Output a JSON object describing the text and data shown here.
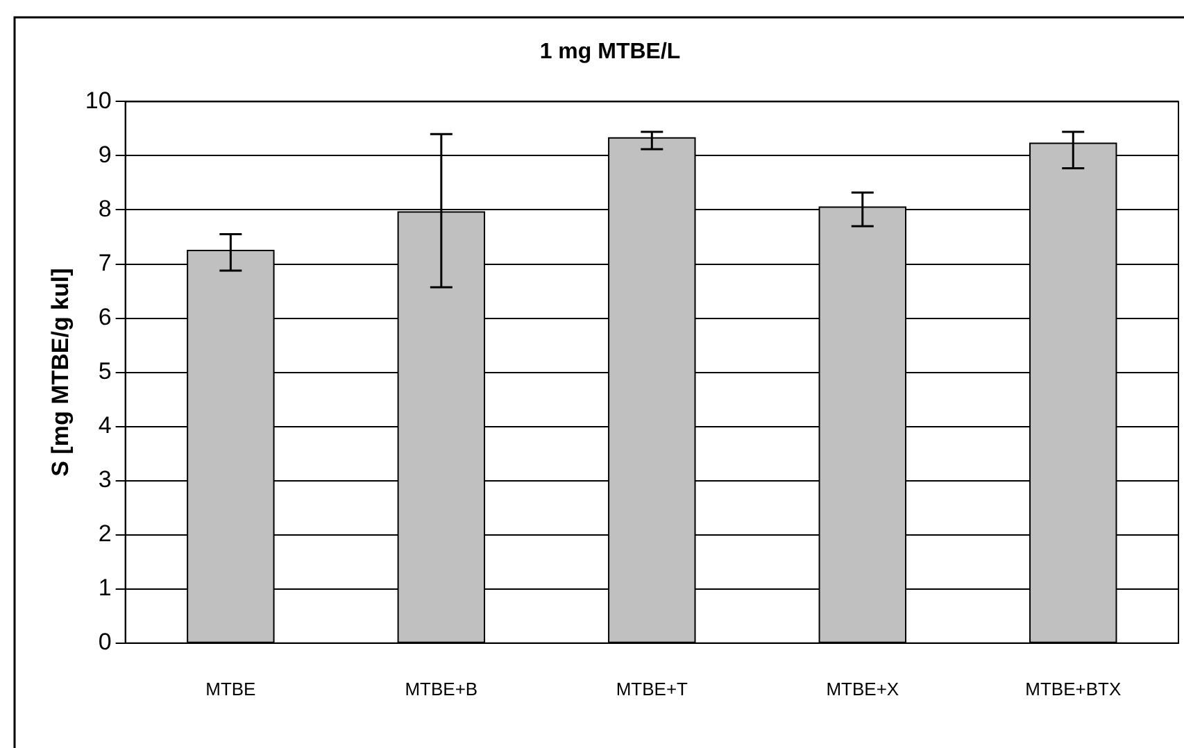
{
  "chart_data": {
    "type": "bar",
    "title": "1 mg MTBE/L",
    "ylabel": "S [mg MTBE/g kul]",
    "categories": [
      "MTBE",
      "MTBE+B",
      "MTBE+T",
      "MTBE+X",
      "MTBE+BTX"
    ],
    "values": [
      7.25,
      7.96,
      9.33,
      8.05,
      9.23
    ],
    "errors": [
      [
        6.88,
        7.55
      ],
      [
        6.57,
        9.4
      ],
      [
        9.12,
        9.44
      ],
      [
        7.7,
        8.32
      ],
      [
        8.77,
        9.44
      ]
    ],
    "color": "#c0c0c0",
    "ylim": [
      0,
      10
    ],
    "yticks": [
      0,
      1,
      2,
      3,
      4,
      5,
      6,
      7,
      8,
      9,
      10
    ],
    "grid": "y",
    "legend": false
  }
}
